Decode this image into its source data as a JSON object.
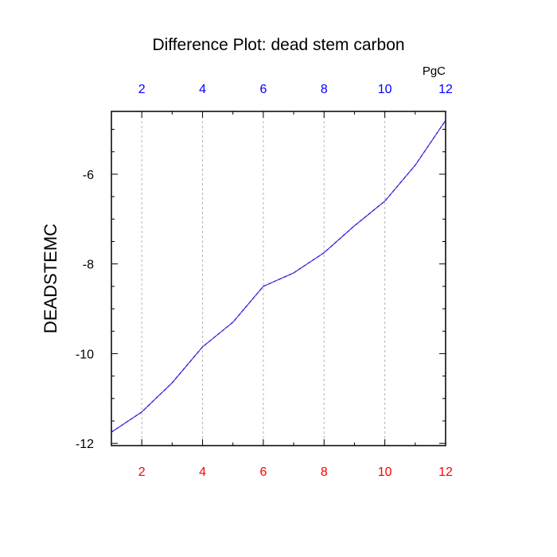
{
  "chart_data": {
    "type": "line",
    "title": "Difference Plot: dead stem carbon",
    "ylabel": "DEADSTEMC",
    "top_units_label": "PgC",
    "xlim": [
      1,
      12
    ],
    "ylim": [
      -12.05,
      -4.6
    ],
    "x_ticks": [
      2,
      4,
      6,
      8,
      10,
      12
    ],
    "y_ticks": [
      -12,
      -10,
      -8,
      -6
    ],
    "x_tick_labels": [
      "2",
      "4",
      "6",
      "8",
      "10",
      "12"
    ],
    "x_top_tick_labels": [
      "2",
      "4",
      "6",
      "8",
      "10",
      "12"
    ],
    "y_tick_labels": [
      "-12",
      "-10",
      "-8",
      "-6"
    ],
    "grid": "vertical-dashed",
    "series": [
      {
        "x": [
          1,
          2,
          3,
          4,
          5,
          6,
          7,
          8,
          9,
          10,
          11,
          12
        ],
        "values": [
          -11.75,
          -11.3,
          -10.65,
          -9.85,
          -9.3,
          -8.5,
          -8.2,
          -7.75,
          -7.15,
          -6.6,
          -5.8,
          -4.8
        ],
        "color": "#7a1fd6",
        "dash_color": "#1f1fe0"
      }
    ],
    "colors": {
      "bottom_tick_labels": "#ff0000",
      "top_tick_labels": "#0000ff",
      "axis": "#000000",
      "grid": "#b4b4b4"
    }
  }
}
